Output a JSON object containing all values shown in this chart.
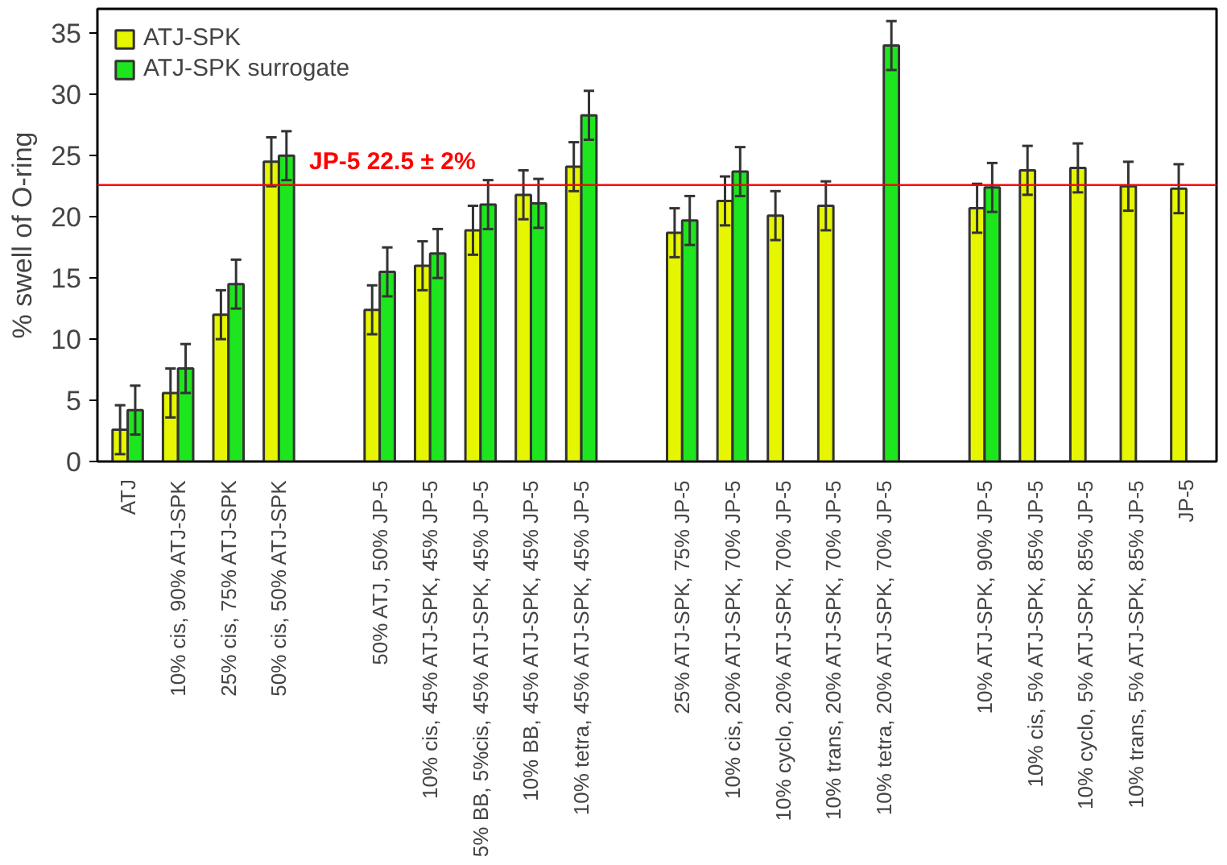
{
  "chart_data": {
    "type": "bar",
    "ylabel": "% swell of O-ring",
    "categories": [
      "ATJ",
      "10% cis, 90% ATJ-SPK",
      "25% cis, 75% ATJ-SPK",
      "50% cis, 50% ATJ-SPK",
      null,
      "50% ATJ, 50% JP-5",
      "10% cis, 45% ATJ-SPK, 45% JP-5",
      "5% BB, 5%cis, 45% ATJ-SPK, 45% JP-5",
      "10% BB, 45% ATJ-SPK, 45% JP-5",
      "10% tetra, 45% ATJ-SPK, 45% JP-5",
      null,
      "25% ATJ-SPK, 75% JP-5",
      "10% cis, 20% ATJ-SPK, 70% JP-5",
      "10% cyclo, 20% ATJ-SPK, 70% JP-5",
      "10% trans, 20% ATJ-SPK, 70% JP-5",
      "10% tetra, 20% ATJ-SPK, 70% JP-5",
      null,
      "10% ATJ-SPK, 90% JP-5",
      "10% cis, 5% ATJ-SPK, 85% JP-5",
      "10% cyclo, 5% ATJ-SPK, 85% JP-5",
      "10% trans, 5% ATJ-SPK, 85% JP-5",
      "JP-5"
    ],
    "series": [
      {
        "name": "ATJ-SPK",
        "color": "#e6f500",
        "values": [
          2.6,
          5.6,
          12.0,
          24.5,
          null,
          12.4,
          16.0,
          18.9,
          21.8,
          24.1,
          null,
          18.7,
          21.3,
          20.1,
          20.9,
          null,
          null,
          20.7,
          23.8,
          24.0,
          22.5,
          22.3
        ],
        "errors": [
          2,
          2,
          2,
          2,
          null,
          2,
          2,
          2,
          2,
          2,
          null,
          2,
          2,
          2,
          2,
          null,
          null,
          2,
          2,
          2,
          2,
          2
        ]
      },
      {
        "name": "ATJ-SPK surrogate",
        "color": "#1ee61e",
        "values": [
          4.2,
          7.6,
          14.5,
          25.0,
          null,
          15.5,
          17.0,
          21.0,
          21.1,
          28.3,
          null,
          19.7,
          23.7,
          null,
          null,
          34.0,
          null,
          22.4,
          null,
          null,
          null,
          null
        ],
        "errors": [
          2,
          2,
          2,
          2,
          null,
          2,
          2,
          2,
          2,
          2,
          null,
          2,
          2,
          null,
          null,
          2,
          null,
          2,
          null,
          null,
          null,
          null
        ]
      }
    ],
    "ylim": [
      0,
      37
    ],
    "yticks": [
      0,
      5,
      10,
      15,
      20,
      25,
      30,
      35
    ],
    "ref_lines": [
      {
        "axis": "y",
        "value": 22.6,
        "label": "JP-5 22.5 ± 2%",
        "color": "#ff0000"
      }
    ],
    "grid": false,
    "legend": "top left"
  }
}
